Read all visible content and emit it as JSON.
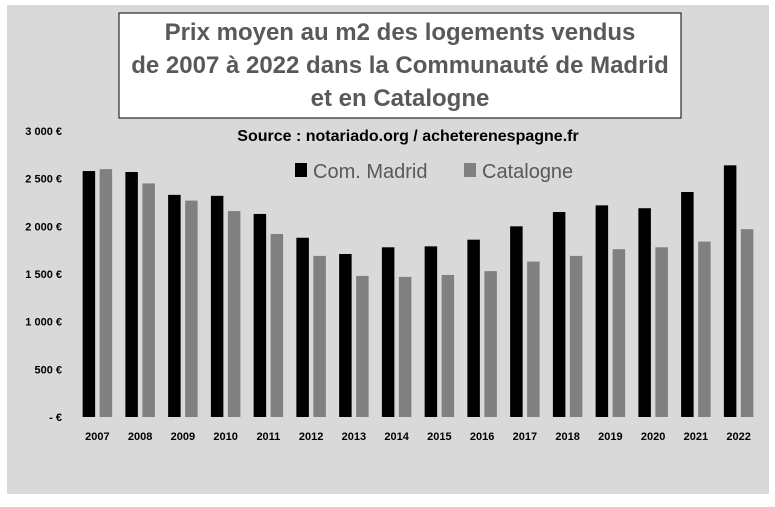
{
  "chart_data": {
    "type": "bar",
    "title_lines": [
      "Prix moyen au m2 des logements vendus",
      "de 2007 à 2022 dans la Communauté de Madrid",
      "et en Catalogne"
    ],
    "subtitle": "Source : notariado.org / acheterenespagne.fr",
    "categories": [
      "2007",
      "2008",
      "2009",
      "2010",
      "2011",
      "2012",
      "2013",
      "2014",
      "2015",
      "2016",
      "2017",
      "2018",
      "2019",
      "2020",
      "2021",
      "2022"
    ],
    "series": [
      {
        "name": "Com. Madrid",
        "color": "#000000",
        "values": [
          2580,
          2570,
          2330,
          2320,
          2130,
          1880,
          1710,
          1780,
          1790,
          1860,
          2000,
          2150,
          2220,
          2190,
          2360,
          2640
        ]
      },
      {
        "name": "Catalogne",
        "color": "#808080",
        "values": [
          2600,
          2450,
          2270,
          2160,
          1920,
          1690,
          1480,
          1470,
          1490,
          1530,
          1630,
          1690,
          1760,
          1780,
          1840,
          1970
        ]
      }
    ],
    "ylim": [
      0,
      3000
    ],
    "yticks": [
      0,
      500,
      1000,
      1500,
      2000,
      2500,
      3000
    ],
    "ytick_labels": [
      "- €",
      "500 €",
      "1 000 €",
      "1 500 €",
      "2 000 €",
      "2 500 €",
      "3 000 €"
    ],
    "xlabel": "",
    "ylabel": "",
    "grid": false,
    "legend_position": "top-right",
    "background_color": "#d9d9d9"
  }
}
